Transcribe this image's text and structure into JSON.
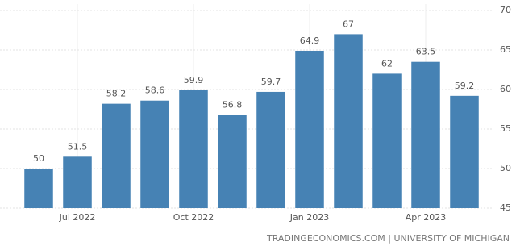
{
  "chart_data": {
    "type": "bar",
    "categories": [
      null,
      "Jul 2022",
      null,
      null,
      "Oct 2022",
      null,
      null,
      "Jan 2023",
      null,
      null,
      "Apr 2023",
      null
    ],
    "values": [
      50,
      51.5,
      58.2,
      58.6,
      59.9,
      56.8,
      59.7,
      64.9,
      67,
      62,
      63.5,
      59.2
    ],
    "color": "#4682b4",
    "ylim": [
      45,
      70
    ],
    "yticks": [
      45,
      50,
      55,
      60,
      65,
      70
    ],
    "grid": true,
    "source": "TRADINGECONOMICS.COM | UNIVERSITY OF MICHIGAN"
  }
}
